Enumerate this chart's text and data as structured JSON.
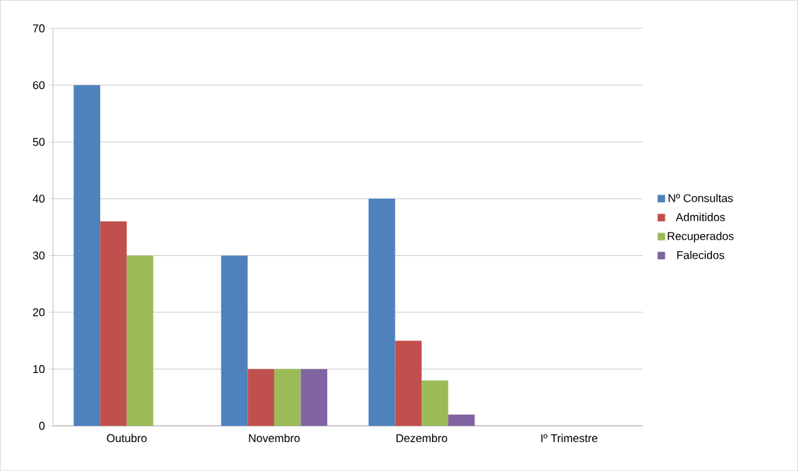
{
  "chart_data": {
    "type": "bar",
    "categories": [
      "Outubro",
      "Novembro",
      "Dezembro",
      "Iº Trimestre"
    ],
    "series": [
      {
        "name": "Nº Consultas",
        "color": "#4f81bd",
        "values": [
          60,
          30,
          40,
          null
        ]
      },
      {
        "name": "Admitidos",
        "color": "#c0504d",
        "values": [
          36,
          10,
          15,
          null
        ]
      },
      {
        "name": "Recuperados",
        "color": "#9bbb59",
        "values": [
          30,
          10,
          8,
          null
        ]
      },
      {
        "name": "Falecidos",
        "color": "#8064a2",
        "values": [
          null,
          10,
          2,
          null
        ]
      }
    ],
    "ylim": [
      0,
      70
    ],
    "yticks": [
      0,
      10,
      20,
      30,
      40,
      50,
      60,
      70
    ],
    "grid": "y",
    "legend": "right"
  }
}
